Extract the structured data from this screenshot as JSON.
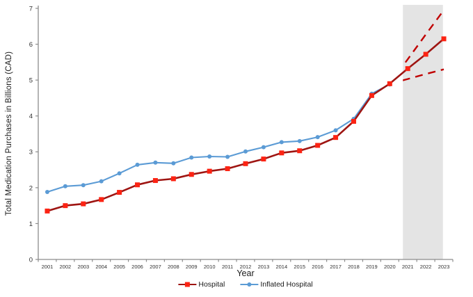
{
  "chart_data": {
    "type": "line",
    "title": "",
    "xlabel": "Year",
    "ylabel": "Total Medication Purchases in Billions (CAD)",
    "categories": [
      "2001",
      "2002",
      "2003",
      "2004",
      "2005",
      "2006",
      "2007",
      "2008",
      "2009",
      "2010",
      "2011",
      "2012",
      "2013",
      "2014",
      "2015",
      "2016",
      "2017",
      "2018",
      "2019",
      "2020",
      "2021",
      "2022",
      "2023"
    ],
    "y_ticks": [
      0,
      1,
      2,
      3,
      4,
      5,
      6,
      7
    ],
    "ylim": [
      0,
      7
    ],
    "grid": false,
    "legend_position": "bottom",
    "axis_color": "#8c8c8c",
    "tick_text_color": "#303030",
    "series": [
      {
        "name": "Inflated Hospital",
        "style": "solid",
        "marker": "circle",
        "line_color": "#5b9bd5",
        "marker_color": "#5b9bd5",
        "values": [
          1.88,
          2.04,
          2.07,
          2.18,
          2.4,
          2.64,
          2.7,
          2.68,
          2.84,
          2.87,
          2.86,
          3.01,
          3.13,
          3.27,
          3.3,
          3.41,
          3.6,
          3.92,
          4.62,
          4.88,
          null,
          null,
          null
        ]
      },
      {
        "name": "Hospital",
        "style": "solid",
        "marker": "square",
        "line_color": "#9e1512",
        "marker_color": "#fc2313",
        "values": [
          1.35,
          1.5,
          1.55,
          1.67,
          1.87,
          2.08,
          2.2,
          2.25,
          2.37,
          2.46,
          2.53,
          2.67,
          2.8,
          2.97,
          3.03,
          3.18,
          3.4,
          3.85,
          4.57,
          4.9,
          5.32,
          5.72,
          6.15
        ]
      },
      {
        "name": "Projection upper bound",
        "style": "dashed",
        "marker": "none",
        "line_color": "#c00000",
        "values": [
          null,
          null,
          null,
          null,
          null,
          null,
          null,
          null,
          null,
          null,
          null,
          null,
          null,
          null,
          null,
          null,
          null,
          null,
          null,
          4.9,
          5.58,
          6.27,
          6.95
        ]
      },
      {
        "name": "Projection lower bound",
        "style": "dashed",
        "marker": "none",
        "line_color": "#c00000",
        "values": [
          null,
          null,
          null,
          null,
          null,
          null,
          null,
          null,
          null,
          null,
          null,
          null,
          null,
          null,
          null,
          null,
          null,
          null,
          null,
          4.9,
          5.03,
          5.17,
          5.3
        ]
      }
    ],
    "projection_band": {
      "start_category": "2021",
      "end_category": "2023",
      "color": "#e4e4e4"
    }
  },
  "legend": {
    "items": [
      {
        "label": "Hospital",
        "series_index": 1
      },
      {
        "label": "Inflated Hospital",
        "series_index": 0
      }
    ]
  }
}
